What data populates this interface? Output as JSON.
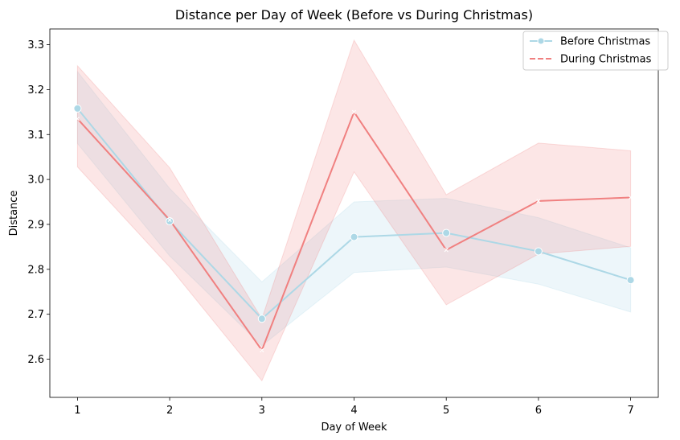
{
  "chart_data": {
    "type": "line",
    "title": "Distance per Day of Week (Before vs During Christmas)",
    "xlabel": "Day of Week",
    "ylabel": "Distance",
    "x": [
      1,
      2,
      3,
      4,
      5,
      6,
      7
    ],
    "xlim": [
      0.7,
      7.3
    ],
    "ylim": [
      2.515,
      3.335
    ],
    "yticks": [
      2.6,
      2.7,
      2.8,
      2.9,
      3.0,
      3.1,
      3.2,
      3.3
    ],
    "ytick_labels": [
      "2.6",
      "2.7",
      "2.8",
      "2.9",
      "3.0",
      "3.1",
      "3.2",
      "3.3"
    ],
    "xtick_labels": [
      "1",
      "2",
      "3",
      "4",
      "5",
      "6",
      "7"
    ],
    "grid": false,
    "legend_position": "top-right",
    "series": [
      {
        "name": "Before Christmas",
        "color": "#add8e6",
        "line_style": "solid",
        "marker": "circle",
        "values": [
          3.158,
          2.907,
          2.69,
          2.872,
          2.881,
          2.84,
          2.776
        ],
        "ci_lower": [
          3.08,
          2.83,
          2.63,
          2.793,
          2.805,
          2.767,
          2.705
        ],
        "ci_upper": [
          3.24,
          2.98,
          2.772,
          2.95,
          2.958,
          2.915,
          2.848
        ]
      },
      {
        "name": "During Christmas",
        "color": "#f08080",
        "line_style": "dashed",
        "marker": "x",
        "values": [
          3.135,
          2.91,
          2.62,
          3.15,
          2.843,
          2.952,
          2.96
        ],
        "ci_lower": [
          3.028,
          2.805,
          2.552,
          3.017,
          2.721,
          2.834,
          2.851
        ],
        "ci_upper": [
          3.253,
          3.026,
          2.69,
          3.31,
          2.966,
          3.081,
          3.064
        ]
      }
    ]
  }
}
